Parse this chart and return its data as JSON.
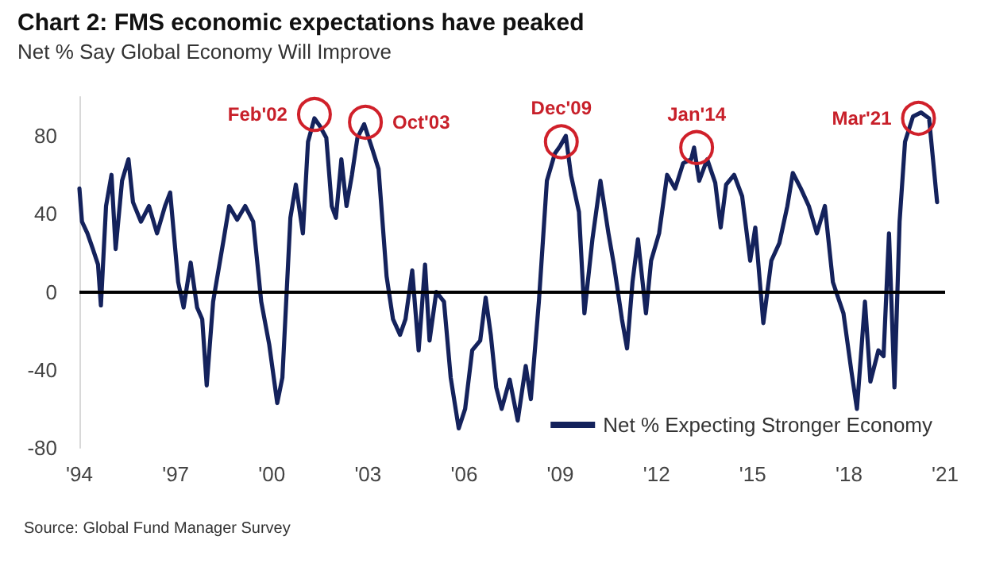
{
  "chart_data": {
    "type": "line",
    "title": "Chart 2: FMS economic expectations have peaked",
    "subtitle": "Net % Say Global Economy Will Improve",
    "xlim": [
      1994,
      2021
    ],
    "xticks": [
      {
        "value": 1994,
        "label": "'94"
      },
      {
        "value": 1997,
        "label": "'97"
      },
      {
        "value": 2000,
        "label": "'00"
      },
      {
        "value": 2003,
        "label": "'03"
      },
      {
        "value": 2006,
        "label": "'06"
      },
      {
        "value": 2009,
        "label": "'09"
      },
      {
        "value": 2012,
        "label": "'12"
      },
      {
        "value": 2015,
        "label": "'15"
      },
      {
        "value": 2018,
        "label": "'18"
      },
      {
        "value": 2021,
        "label": "'21"
      }
    ],
    "ylim": [
      -80,
      100
    ],
    "yticks": [
      -80,
      -40,
      0,
      40,
      80
    ],
    "grid": false,
    "legend": "bottom right",
    "marker": "none",
    "line_style": "solid",
    "ref_lines": [
      {
        "axis": "y",
        "value": 0,
        "color": "#000000"
      }
    ],
    "x": [
      1994.0,
      1994.08,
      1994.25,
      1994.42,
      1994.58,
      1994.67,
      1994.83,
      1995.0,
      1995.13,
      1995.33,
      1995.53,
      1995.67,
      1995.92,
      1996.17,
      1996.42,
      1996.67,
      1996.83,
      1997.08,
      1997.25,
      1997.47,
      1997.67,
      1997.83,
      1997.97,
      1998.17,
      1998.5,
      1998.67,
      1998.92,
      1999.17,
      1999.42,
      1999.67,
      1999.92,
      2000.17,
      2000.33,
      2000.58,
      2000.75,
      2000.97,
      2001.13,
      2001.33,
      2001.5,
      2001.7,
      2001.87,
      2002.0,
      2002.17,
      2002.33,
      2002.5,
      2002.67,
      2002.88,
      2003.12,
      2003.33,
      2003.58,
      2003.78,
      2004.0,
      2004.17,
      2004.38,
      2004.58,
      2004.78,
      2004.92,
      2005.13,
      2005.37,
      2005.58,
      2005.83,
      2006.03,
      2006.25,
      2006.5,
      2006.67,
      2006.83,
      2007.0,
      2007.17,
      2007.42,
      2007.67,
      2007.92,
      2008.08,
      2008.33,
      2008.58,
      2008.83,
      2009.0,
      2009.17,
      2009.33,
      2009.58,
      2009.75,
      2010.0,
      2010.25,
      2010.5,
      2010.67,
      2010.92,
      2011.08,
      2011.25,
      2011.42,
      2011.67,
      2011.83,
      2012.08,
      2012.33,
      2012.58,
      2012.83,
      2013.08,
      2013.17,
      2013.33,
      2013.58,
      2013.83,
      2014.0,
      2014.17,
      2014.42,
      2014.67,
      2014.92,
      2015.08,
      2015.33,
      2015.58,
      2015.83,
      2016.08,
      2016.25,
      2016.5,
      2016.75,
      2017.0,
      2017.25,
      2017.5,
      2017.83,
      2018.08,
      2018.25,
      2018.5,
      2018.67,
      2018.92,
      2019.08,
      2019.25,
      2019.42,
      2019.58,
      2019.75,
      2020.0,
      2020.25,
      2020.5,
      2020.75
    ],
    "series": [
      {
        "name": "Net % Expecting Stronger Economy",
        "color": "#14225c",
        "values": [
          53,
          36,
          30,
          22,
          14,
          -7,
          44,
          60,
          22,
          57,
          68,
          46,
          36,
          44,
          30,
          44,
          51,
          5,
          -8,
          15,
          -8,
          -14,
          -48,
          -5,
          27,
          44,
          37,
          44,
          36,
          -5,
          -27,
          -57,
          -44,
          38,
          55,
          30,
          77,
          89,
          85,
          79,
          44,
          38,
          68,
          44,
          60,
          79,
          86,
          74,
          63,
          8,
          -14,
          -22,
          -14,
          11,
          -30,
          14,
          -25,
          0,
          -5,
          -44,
          -70,
          -60,
          -30,
          -25,
          -3,
          -22,
          -49,
          -60,
          -45,
          -66,
          -38,
          -55,
          -5,
          57,
          71,
          75,
          80,
          60,
          41,
          -11,
          27,
          57,
          30,
          14,
          -14,
          -29,
          5,
          27,
          -11,
          16,
          30,
          60,
          53,
          66,
          68,
          74,
          57,
          68,
          56,
          33,
          55,
          60,
          49,
          16,
          33,
          -16,
          16,
          25,
          44,
          61,
          53,
          44,
          30,
          44,
          5,
          -11,
          -41,
          -60,
          -5,
          -46,
          -30,
          -33,
          30,
          -49,
          36,
          77,
          90,
          92,
          89,
          46
        ]
      }
    ],
    "annotations": [
      {
        "text": "Feb'02",
        "x": 2001.33,
        "y": 91
      },
      {
        "text": "Oct'03",
        "x": 2002.92,
        "y": 87
      },
      {
        "text": "Dec'09",
        "x": 2009.03,
        "y": 77
      },
      {
        "text": "Jan'14",
        "x": 2013.25,
        "y": 74
      },
      {
        "text": "Mar'21",
        "x": 2020.17,
        "y": 89
      },
      "Source: Global Fund Manager Survey"
    ]
  }
}
